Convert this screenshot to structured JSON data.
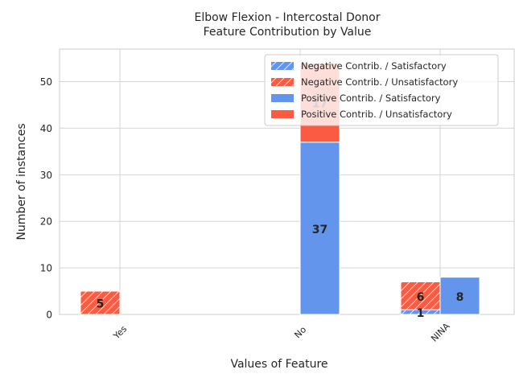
{
  "chart_data": {
    "type": "bar",
    "title_line1": "Elbow Flexion - Intercostal Donor",
    "title_line2": "Feature Contribution by Value",
    "xlabel": "Values of Feature",
    "ylabel": "Number of instances",
    "categories": [
      "Yes",
      "No",
      "NINA"
    ],
    "ylim": [
      0,
      57
    ],
    "yticks": [
      0,
      10,
      20,
      30,
      40,
      50
    ],
    "grid": true,
    "legend_position": "top-right",
    "series": [
      {
        "name": "Negative Contrib. / Satisfactory",
        "group": "negative",
        "color": "#6495ed",
        "hatch": true,
        "values": [
          0,
          0,
          1
        ],
        "labels": [
          "",
          "",
          "1"
        ]
      },
      {
        "name": "Negative Contrib. / Unsatisfactory",
        "group": "negative",
        "color": "#fa5b42",
        "hatch": true,
        "values": [
          5,
          0,
          6
        ],
        "labels": [
          "5",
          "",
          "6"
        ]
      },
      {
        "name": "Positive Contrib. / Satisfactory",
        "group": "positive",
        "color": "#6495ed",
        "hatch": false,
        "values": [
          0,
          37,
          8
        ],
        "labels": [
          "",
          "37",
          "8"
        ]
      },
      {
        "name": "Positive Contrib. / Unsatisfactory",
        "group": "positive",
        "color": "#fa5b42",
        "hatch": false,
        "values": [
          0,
          17,
          0
        ],
        "labels": [
          "",
          "17",
          ""
        ]
      }
    ]
  }
}
